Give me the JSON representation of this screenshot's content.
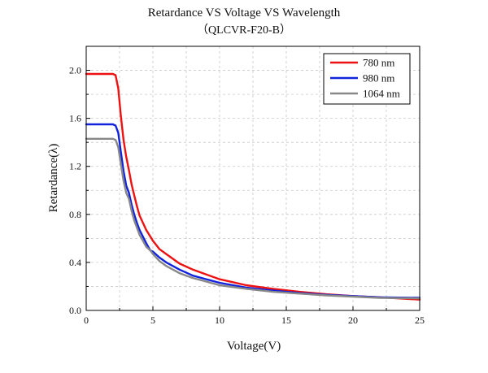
{
  "chart_data": {
    "type": "line",
    "title": "Retardance VS Voltage VS Wavelength",
    "subtitle": "（QLCVR-F20-B）",
    "xlabel": "Voltage(V)",
    "ylabel": "Retardance(λ)",
    "xlim": [
      0,
      25
    ],
    "ylim": [
      0,
      2.2
    ],
    "x_ticks": [
      "0",
      "5",
      "10",
      "15",
      "20",
      "25"
    ],
    "y_ticks": [
      "0.0",
      "0.4",
      "0.8",
      "1.2",
      "1.6",
      "2.0"
    ],
    "grid": true,
    "legend": "top-right",
    "series": [
      {
        "name": "780 nm",
        "color": "#ee1111",
        "x": [
          0,
          1,
          2,
          2.2,
          2.4,
          2.6,
          2.8,
          3.0,
          3.2,
          3.4,
          3.6,
          3.8,
          4.0,
          4.5,
          5.0,
          5.5,
          6,
          7,
          8,
          9,
          10,
          12,
          14,
          16,
          18,
          20,
          22,
          25
        ],
        "y": [
          1.97,
          1.97,
          1.97,
          1.96,
          1.85,
          1.62,
          1.42,
          1.28,
          1.17,
          1.05,
          0.96,
          0.87,
          0.79,
          0.67,
          0.58,
          0.51,
          0.47,
          0.39,
          0.34,
          0.3,
          0.26,
          0.21,
          0.18,
          0.155,
          0.135,
          0.12,
          0.11,
          0.09
        ]
      },
      {
        "name": "980 nm",
        "color": "#1122dd",
        "x": [
          0,
          1,
          2,
          2.2,
          2.4,
          2.6,
          2.8,
          3.0,
          3.2,
          3.4,
          3.6,
          3.8,
          4.0,
          4.5,
          4.8,
          5.0,
          5.5,
          6,
          7,
          8,
          9,
          10,
          12,
          14,
          16,
          18,
          20,
          22,
          25
        ],
        "y": [
          1.55,
          1.55,
          1.55,
          1.54,
          1.48,
          1.32,
          1.16,
          1.04,
          0.98,
          0.88,
          0.8,
          0.73,
          0.67,
          0.56,
          0.5,
          0.49,
          0.44,
          0.4,
          0.34,
          0.29,
          0.26,
          0.23,
          0.19,
          0.165,
          0.145,
          0.13,
          0.12,
          0.11,
          0.105
        ]
      },
      {
        "name": "1064 nm",
        "color": "#888888",
        "x": [
          0,
          1,
          2,
          2.2,
          2.4,
          2.6,
          2.8,
          3.0,
          3.2,
          3.4,
          3.6,
          3.8,
          4.0,
          4.5,
          4.8,
          5.0,
          5.5,
          6,
          7,
          8,
          9,
          10,
          12,
          14,
          16,
          18,
          20,
          22,
          25
        ],
        "y": [
          1.43,
          1.43,
          1.43,
          1.42,
          1.36,
          1.22,
          1.08,
          0.98,
          0.93,
          0.83,
          0.75,
          0.69,
          0.63,
          0.53,
          0.5,
          0.47,
          0.41,
          0.37,
          0.31,
          0.27,
          0.24,
          0.21,
          0.18,
          0.155,
          0.14,
          0.125,
          0.115,
          0.105,
          0.1
        ]
      }
    ]
  }
}
